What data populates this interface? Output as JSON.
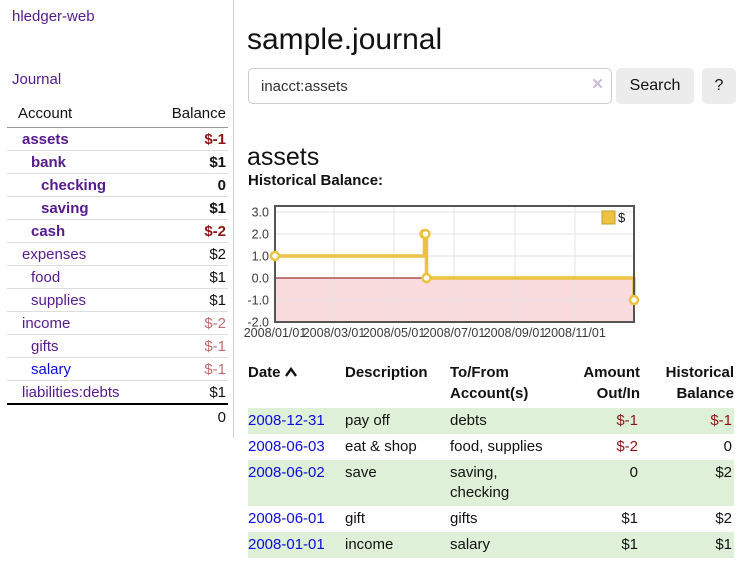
{
  "app": {
    "title": "hledger-web"
  },
  "sidebar": {
    "journal_link": "Journal",
    "table": {
      "account_header": "Account",
      "balance_header": "Balance",
      "accounts": [
        {
          "name": "assets",
          "depth": 1,
          "bold": true,
          "balance": "$-1",
          "neg": "strong",
          "link": "visited"
        },
        {
          "name": "bank",
          "depth": 2,
          "bold": true,
          "balance": "$1",
          "neg": null,
          "link": "visited"
        },
        {
          "name": "checking",
          "depth": 3,
          "bold": true,
          "balance": "0",
          "neg": null,
          "link": "visited"
        },
        {
          "name": "saving",
          "depth": 3,
          "bold": true,
          "balance": "$1",
          "neg": null,
          "link": "visited"
        },
        {
          "name": "cash",
          "depth": 2,
          "bold": true,
          "balance": "$-2",
          "neg": "strong",
          "link": "visited"
        },
        {
          "name": "expenses",
          "depth": 1,
          "bold": false,
          "balance": "$2",
          "neg": null,
          "link": "visited"
        },
        {
          "name": "food",
          "depth": 2,
          "bold": false,
          "balance": "$1",
          "neg": null,
          "link": "visited"
        },
        {
          "name": "supplies",
          "depth": 2,
          "bold": false,
          "balance": "$1",
          "neg": null,
          "link": "visited"
        },
        {
          "name": "income",
          "depth": 1,
          "bold": false,
          "balance": "$-2",
          "neg": "soft",
          "link": "visited"
        },
        {
          "name": "gifts",
          "depth": 2,
          "bold": false,
          "balance": "$-1",
          "neg": "soft",
          "link": "visited"
        },
        {
          "name": "salary",
          "depth": 2,
          "bold": false,
          "balance": "$-1",
          "neg": "soft",
          "link": "new"
        },
        {
          "name": "liabilities:debts",
          "depth": 1,
          "bold": false,
          "balance": "$1",
          "neg": null,
          "link": "visited"
        }
      ],
      "total": "0"
    }
  },
  "main": {
    "title": "sample.journal",
    "search": {
      "value": "inacct:assets",
      "clear_icon": "×",
      "button": "Search",
      "help": "?"
    },
    "account_heading": "assets",
    "chart_heading": "Historical Balance:"
  },
  "chart_data": {
    "type": "line",
    "title": "Historical Balance",
    "steps": true,
    "series": [
      {
        "name": "$",
        "color": "#edc240",
        "points": [
          [
            "2008-01-01",
            1
          ],
          [
            "2008-06-01",
            2
          ],
          [
            "2008-06-02",
            2
          ],
          [
            "2008-06-03",
            0
          ],
          [
            "2008-12-31",
            -1
          ]
        ]
      }
    ],
    "x_ticks": [
      "2008/01/01",
      "2008/03/01",
      "2008/05/01",
      "2008/07/01",
      "2008/09/01",
      "2008/11/01"
    ],
    "y_ticks": [
      3.0,
      2.0,
      1.0,
      0.0,
      -1.0,
      -2.0
    ],
    "ylim": [
      -2.0,
      3.27
    ],
    "legend_position": "top-right",
    "grid": true,
    "negative_region_color": "#fadbde",
    "zero_line_color": "#8b0000"
  },
  "register": {
    "headers": {
      "date": "Date",
      "description": "Description",
      "tofrom": "To/From\nAccount(s)",
      "amount": "Amount\nOut/In",
      "balance": "Historical\nBalance"
    },
    "rows": [
      {
        "date": "2008-12-31",
        "description": "pay off",
        "tofrom": "debts",
        "amount": "$-1",
        "balance": "$-1",
        "amount_neg": true,
        "balance_neg": true
      },
      {
        "date": "2008-06-03",
        "description": "eat & shop",
        "tofrom": "food, supplies",
        "amount": "$-2",
        "balance": "0",
        "amount_neg": true,
        "balance_neg": false
      },
      {
        "date": "2008-06-02",
        "description": "save",
        "tofrom": "saving,\nchecking",
        "amount": "0",
        "balance": "$2",
        "amount_neg": false,
        "balance_neg": false
      },
      {
        "date": "2008-06-01",
        "description": "gift",
        "tofrom": "gifts",
        "amount": "$1",
        "balance": "$2",
        "amount_neg": false,
        "balance_neg": false
      },
      {
        "date": "2008-01-01",
        "description": "income",
        "tofrom": "salary",
        "amount": "$1",
        "balance": "$1",
        "amount_neg": false,
        "balance_neg": false
      }
    ]
  }
}
